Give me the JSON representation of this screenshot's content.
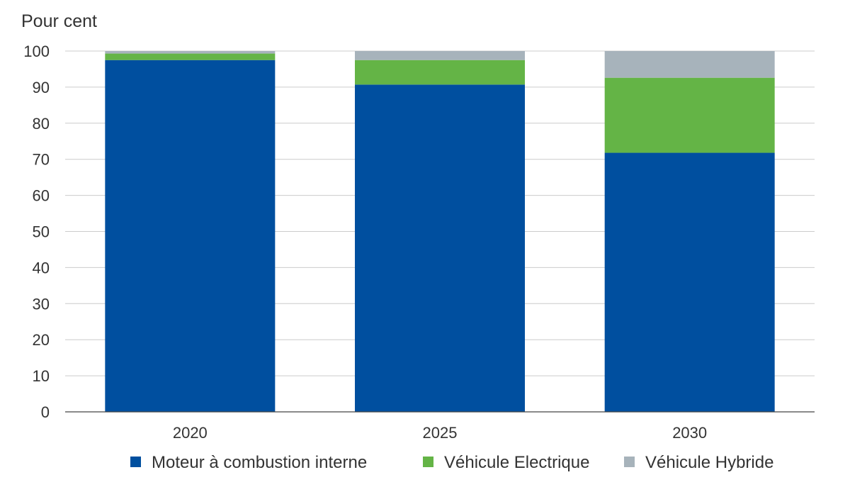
{
  "chart_data": {
    "type": "bar",
    "stacked": true,
    "ylabel": "Pour cent",
    "xlabel": "",
    "ylim": [
      0,
      100
    ],
    "yticks": [
      0,
      10,
      20,
      30,
      40,
      50,
      60,
      70,
      80,
      90,
      100
    ],
    "grid": "horizontal",
    "legend_position": "bottom",
    "categories": [
      "2020",
      "2025",
      "2030"
    ],
    "series": [
      {
        "name": "Moteur à combustion interne",
        "color": "#004f9f",
        "values": [
          97.5,
          90.7,
          71.8
        ]
      },
      {
        "name": "Véhicule Electrique",
        "color": "#64b446",
        "values": [
          1.8,
          6.8,
          20.8
        ]
      },
      {
        "name": "Véhicule Hybride",
        "color": "#a7b3bb",
        "values": [
          0.7,
          2.5,
          7.4
        ]
      }
    ]
  }
}
